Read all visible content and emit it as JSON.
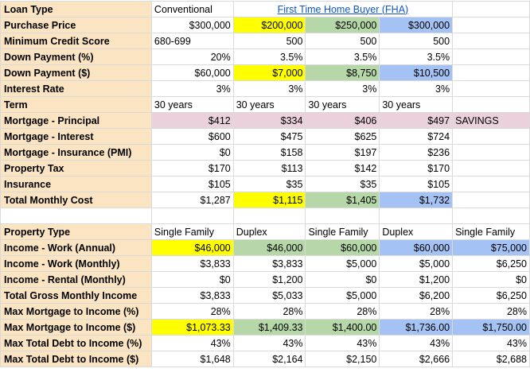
{
  "section1": {
    "rows": [
      {
        "label": "Loan Type",
        "cells": [
          "Conventional",
          "First Time Home Buyer (FHA)",
          "",
          "",
          ""
        ]
      },
      {
        "label": "Purchase Price",
        "cells": [
          "$300,000",
          "$200,000",
          "$250,000",
          "$300,000",
          ""
        ]
      },
      {
        "label": "Minimum Credit Score",
        "cells": [
          "680-699",
          "500",
          "500",
          "500",
          ""
        ]
      },
      {
        "label": "Down Payment (%)",
        "cells": [
          "20%",
          "3.5%",
          "3.5%",
          "3.5%",
          ""
        ]
      },
      {
        "label": "Down Payment ($)",
        "cells": [
          "$60,000",
          "$7,000",
          "$8,750",
          "$10,500",
          ""
        ]
      },
      {
        "label": "Interest Rate",
        "cells": [
          "3%",
          "3%",
          "3%",
          "3%",
          ""
        ]
      },
      {
        "label": "Term",
        "cells": [
          "30 years",
          "30 years",
          "30 years",
          "30 years",
          ""
        ]
      },
      {
        "label": "Mortgage - Principal",
        "cells": [
          "$412",
          "$334",
          "$406",
          "$497",
          "SAVINGS"
        ]
      },
      {
        "label": "Mortgage - Interest",
        "cells": [
          "$600",
          "$475",
          "$625",
          "$724",
          ""
        ]
      },
      {
        "label": "Mortgage - Insurance (PMI)",
        "cells": [
          "$0",
          "$158",
          "$197",
          "$236",
          ""
        ]
      },
      {
        "label": "Property Tax",
        "cells": [
          "$170",
          "$113",
          "$142",
          "$170",
          ""
        ]
      },
      {
        "label": "Insurance",
        "cells": [
          "$105",
          "$35",
          "$35",
          "$105",
          ""
        ]
      },
      {
        "label": "Total Monthly Cost",
        "cells": [
          "$1,287",
          "$1,115",
          "$1,405",
          "$1,732",
          ""
        ]
      }
    ]
  },
  "section2": {
    "rows": [
      {
        "label": "Property Type",
        "cells": [
          "Single Family",
          "Duplex",
          "Single Family",
          "Duplex",
          "Single Family"
        ]
      },
      {
        "label": "Income - Work (Annual)",
        "cells": [
          "$46,000",
          "$46,000",
          "$60,000",
          "$60,000",
          "$75,000"
        ]
      },
      {
        "label": "Income - Work (Monthly)",
        "cells": [
          "$3,833",
          "$3,833",
          "$5,000",
          "$5,000",
          "$6,250"
        ]
      },
      {
        "label": "Income - Rental (Monthly)",
        "cells": [
          "$0",
          "$1,200",
          "$0",
          "$1,200",
          "$0"
        ]
      },
      {
        "label": "Total Gross Monthly Income",
        "cells": [
          "$3,833",
          "$5,033",
          "$5,000",
          "$6,200",
          "$6,250"
        ]
      },
      {
        "label": "Max Mortgage to Income (%)",
        "cells": [
          "28%",
          "28%",
          "28%",
          "28%",
          "28%"
        ]
      },
      {
        "label": "Max Mortgage to Income ($)",
        "cells": [
          "$1,073.33",
          "$1,409.33",
          "$1,400.00",
          "$1,736.00",
          "$1,750.00"
        ]
      },
      {
        "label": "Max Total Debt to Income (%)",
        "cells": [
          "43%",
          "43%",
          "43%",
          "43%",
          "43%"
        ]
      },
      {
        "label": "Max Total Debt to Income ($)",
        "cells": [
          "$1,648",
          "$2,164",
          "$2,150",
          "$2,666",
          "$2,688"
        ]
      }
    ]
  },
  "colors": {
    "label_bg": "#fbe4c2",
    "yellow": "#ffff00",
    "green": "#b6d7a8",
    "blue": "#a4c2f4",
    "pink": "#ead1dc",
    "link": "#1155cc"
  }
}
